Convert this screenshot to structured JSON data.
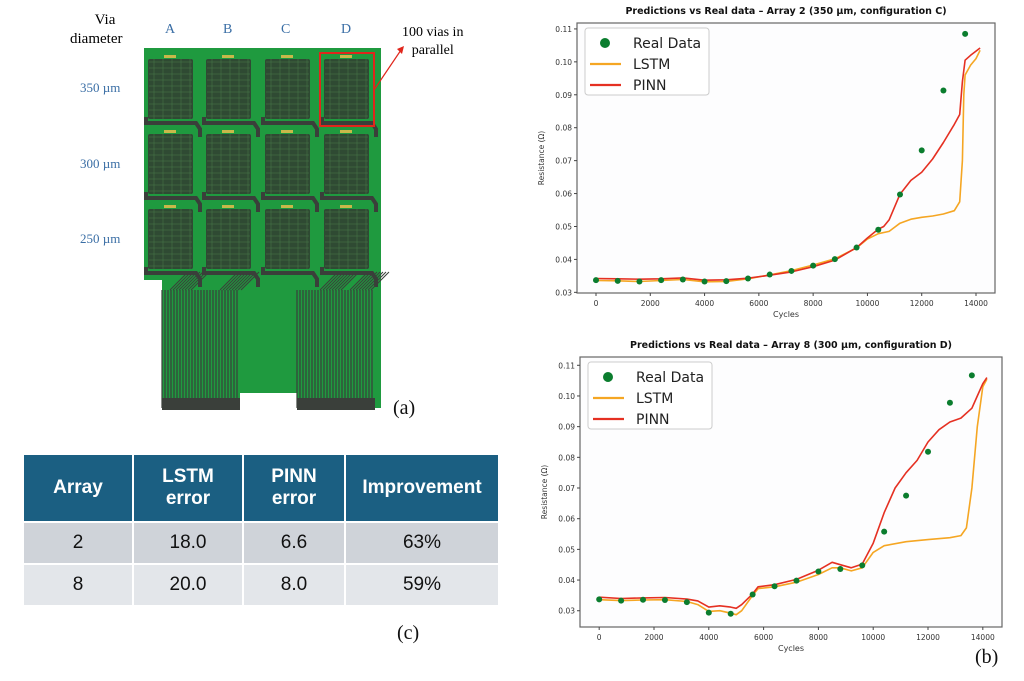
{
  "panel_a": {
    "header_via": "Via",
    "header_diameter": "diameter",
    "columns": [
      "A",
      "B",
      "C",
      "D"
    ],
    "rows": [
      "350 µm",
      "300 µm",
      "250 µm"
    ],
    "annotation": [
      "100 vias in",
      "parallel"
    ],
    "highlight": {
      "row": 0,
      "column": "D"
    },
    "caption": "(a)",
    "colors": {
      "board": "#1f9a3f",
      "array": "#2f4a33",
      "trace": "#3a3f3a",
      "highlight": "#e0261c",
      "label": "#3a6ea5"
    }
  },
  "panel_c": {
    "headers": [
      [
        "Array"
      ],
      [
        "LSTM",
        "error"
      ],
      [
        "PINN",
        "error"
      ],
      [
        "Improvement"
      ]
    ],
    "rows": [
      [
        "2",
        "18.0",
        "6.6",
        "63%"
      ],
      [
        "8",
        "20.0",
        "8.0",
        "59%"
      ]
    ],
    "caption": "(c)"
  },
  "panel_b_caption": "(b)",
  "chart_data": [
    {
      "type": "line",
      "title": "Predictions vs Real data – Array 2 (350 µm, configuration C)",
      "xlabel": "Cycles",
      "ylabel": "Resistance (Ω)",
      "xlim": [
        -700,
        14700
      ],
      "ylim": [
        0.0298,
        0.1118
      ],
      "xticks": [
        0,
        2000,
        4000,
        6000,
        8000,
        10000,
        12000,
        14000
      ],
      "yticks": [
        0.03,
        0.04,
        0.05,
        0.06,
        0.07,
        0.08,
        0.09,
        0.1,
        0.11
      ],
      "ytick_labels": [
        "0.03",
        "0.04",
        "0.05",
        "0.06",
        "0.07",
        "0.08",
        "0.09",
        "0.10",
        "0.11"
      ],
      "grid": false,
      "legend_position": "top-left",
      "legend": [
        "Real Data",
        "LSTM",
        "PINN"
      ],
      "series": [
        {
          "name": "Real Data",
          "kind": "scatter",
          "color": "#0b7d2e",
          "x": [
            0,
            800,
            1600,
            2400,
            3200,
            4000,
            4800,
            5600,
            6400,
            7200,
            8000,
            8800,
            9600,
            10400,
            11200,
            12000,
            12800,
            13600
          ],
          "y": [
            0.0337,
            0.0335,
            0.0333,
            0.0337,
            0.0339,
            0.0333,
            0.0334,
            0.0342,
            0.0354,
            0.0365,
            0.0381,
            0.0401,
            0.0436,
            0.049,
            0.0597,
            0.0731,
            0.0913,
            0.1085
          ]
        },
        {
          "name": "LSTM",
          "kind": "line",
          "color": "#f5a623",
          "x": [
            0,
            800,
            1600,
            2400,
            3200,
            4000,
            4800,
            5600,
            6400,
            7200,
            8000,
            8800,
            9600,
            10000,
            10400,
            10800,
            11200,
            11600,
            12000,
            12400,
            12800,
            13200,
            13400,
            13500,
            13550,
            13600,
            13800,
            14000,
            14150
          ],
          "y": [
            0.0336,
            0.0335,
            0.0333,
            0.0336,
            0.0339,
            0.0332,
            0.0333,
            0.0341,
            0.0353,
            0.0366,
            0.0383,
            0.0402,
            0.0435,
            0.0462,
            0.0478,
            0.0485,
            0.051,
            0.0522,
            0.0528,
            0.0532,
            0.0538,
            0.0548,
            0.0575,
            0.07,
            0.09,
            0.096,
            0.099,
            0.101,
            0.1035
          ]
        },
        {
          "name": "PINN",
          "kind": "line",
          "color": "#e53022",
          "x": [
            0,
            800,
            1600,
            2400,
            3200,
            4000,
            4800,
            5600,
            6400,
            7200,
            8000,
            8800,
            9600,
            10000,
            10400,
            10600,
            10800,
            11200,
            11600,
            12000,
            12400,
            12800,
            13200,
            13400,
            13500,
            13600,
            13800,
            14150
          ],
          "y": [
            0.0342,
            0.0341,
            0.034,
            0.0341,
            0.0344,
            0.0337,
            0.0338,
            0.0343,
            0.0352,
            0.0362,
            0.0378,
            0.0398,
            0.0436,
            0.0465,
            0.0492,
            0.05,
            0.052,
            0.0598,
            0.064,
            0.0665,
            0.0705,
            0.0755,
            0.081,
            0.084,
            0.094,
            0.1005,
            0.102,
            0.1042
          ]
        }
      ]
    },
    {
      "type": "line",
      "title": "Predictions vs Real data – Array 8 (300 µm, configuration D)",
      "xlabel": "Cycles",
      "ylabel": "Resistance (Ω)",
      "xlim": [
        -700,
        14700
      ],
      "ylim": [
        0.0247,
        0.1127
      ],
      "xticks": [
        0,
        2000,
        4000,
        6000,
        8000,
        10000,
        12000,
        14000
      ],
      "yticks": [
        0.03,
        0.04,
        0.05,
        0.06,
        0.07,
        0.08,
        0.09,
        0.1,
        0.11
      ],
      "ytick_labels": [
        "0.03",
        "0.04",
        "0.05",
        "0.06",
        "0.07",
        "0.08",
        "0.09",
        "0.10",
        "0.11"
      ],
      "grid": false,
      "legend_position": "top-left",
      "legend": [
        "Real Data",
        "LSTM",
        "PINN"
      ],
      "series": [
        {
          "name": "Real Data",
          "kind": "scatter",
          "color": "#0b7d2e",
          "x": [
            0,
            800,
            1600,
            2400,
            3200,
            4000,
            4800,
            5600,
            6400,
            7200,
            8000,
            8800,
            9600,
            10400,
            11200,
            12000,
            12800,
            13600
          ],
          "y": [
            0.0337,
            0.0333,
            0.0336,
            0.0335,
            0.0328,
            0.0294,
            0.029,
            0.0353,
            0.038,
            0.0398,
            0.0428,
            0.0436,
            0.0448,
            0.0558,
            0.0675,
            0.0818,
            0.0978,
            0.1067
          ]
        },
        {
          "name": "LSTM",
          "kind": "line",
          "color": "#f5a623",
          "x": [
            0,
            800,
            1600,
            2400,
            3200,
            3600,
            4000,
            4400,
            4800,
            5000,
            5200,
            5600,
            5800,
            6400,
            7200,
            8000,
            8500,
            8800,
            9200,
            9600,
            10000,
            10400,
            11200,
            12000,
            12800,
            13200,
            13400,
            13600,
            13800,
            14000,
            14150
          ],
          "y": [
            0.0336,
            0.0333,
            0.0335,
            0.0336,
            0.033,
            0.032,
            0.0298,
            0.03,
            0.0292,
            0.0287,
            0.03,
            0.035,
            0.0372,
            0.0378,
            0.0393,
            0.0418,
            0.044,
            0.044,
            0.043,
            0.044,
            0.049,
            0.0512,
            0.0525,
            0.0532,
            0.0538,
            0.0545,
            0.057,
            0.07,
            0.09,
            0.103,
            0.1055
          ]
        },
        {
          "name": "PINN",
          "kind": "line",
          "color": "#e53022",
          "x": [
            0,
            800,
            1600,
            2400,
            3200,
            3600,
            4000,
            4400,
            4800,
            5000,
            5200,
            5600,
            5800,
            6400,
            7200,
            8000,
            8500,
            8800,
            9200,
            9600,
            10000,
            10400,
            10800,
            11200,
            11600,
            12000,
            12400,
            12800,
            13200,
            13600,
            13800,
            14000,
            14150
          ],
          "y": [
            0.0344,
            0.034,
            0.0342,
            0.0343,
            0.0338,
            0.0332,
            0.0312,
            0.0316,
            0.0312,
            0.0308,
            0.032,
            0.0355,
            0.0378,
            0.0385,
            0.0402,
            0.0432,
            0.0458,
            0.045,
            0.044,
            0.0452,
            0.052,
            0.062,
            0.07,
            0.075,
            0.079,
            0.085,
            0.089,
            0.0915,
            0.0928,
            0.096,
            0.1,
            0.104,
            0.106
          ]
        }
      ]
    }
  ]
}
